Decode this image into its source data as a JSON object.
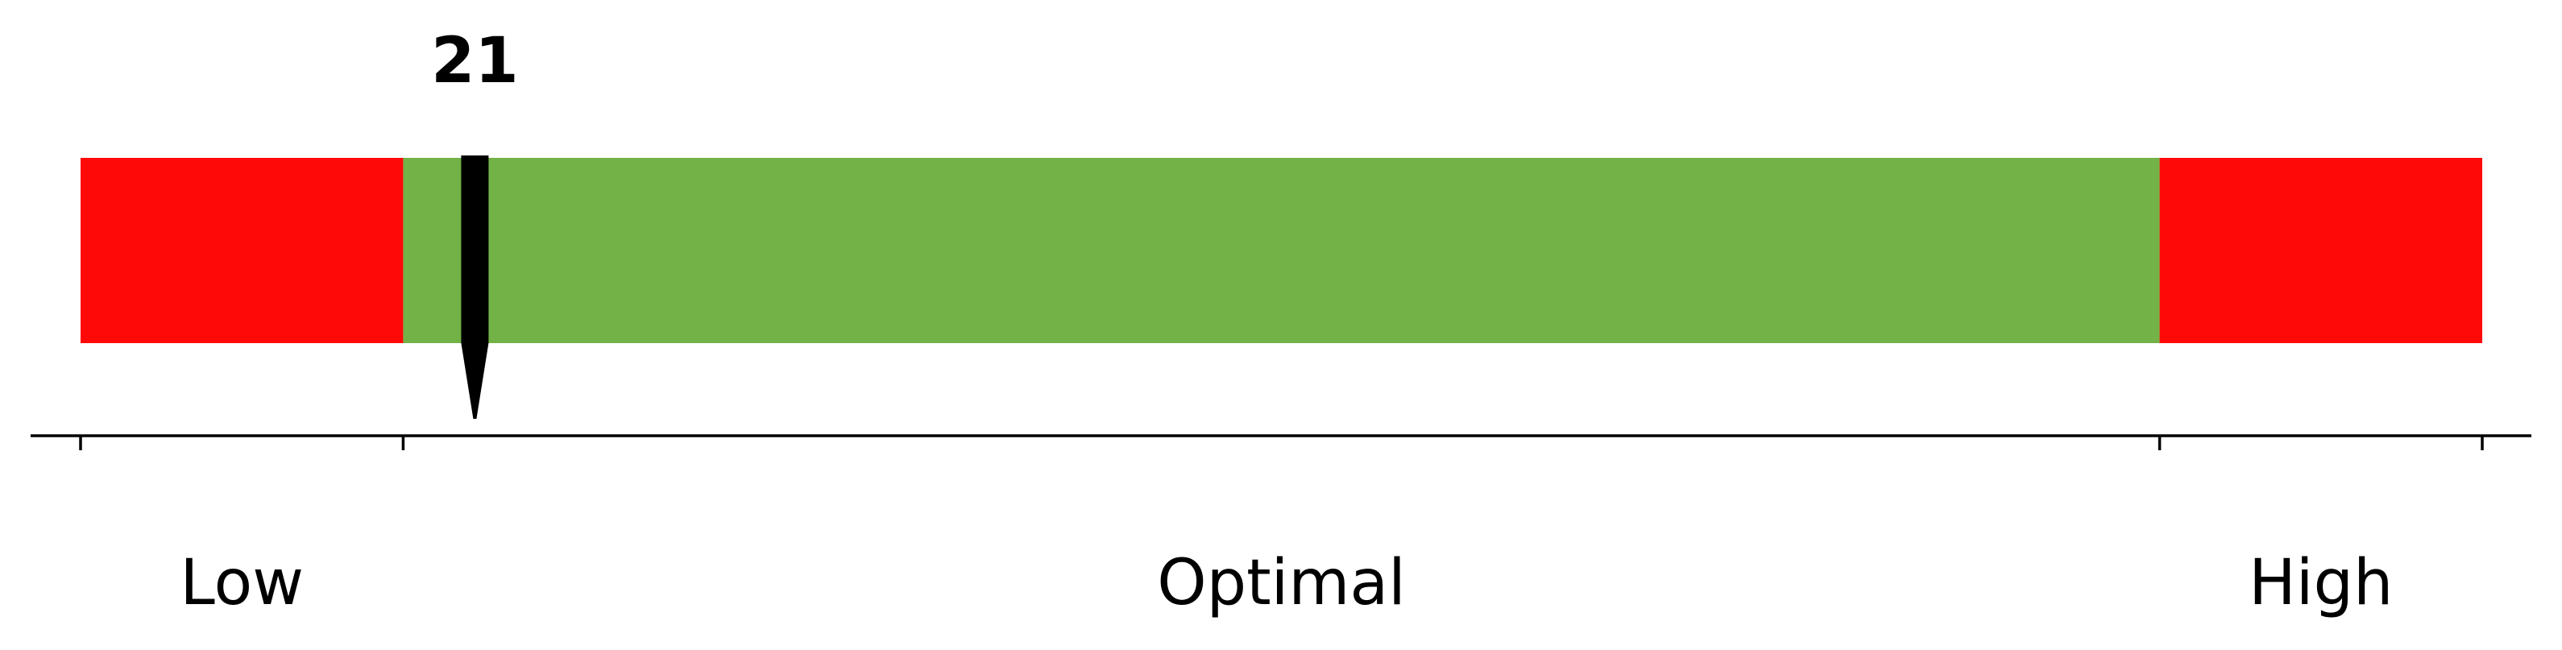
{
  "chart_data": {
    "type": "bar",
    "value": 21,
    "value_label": "21",
    "xlim": [
      10,
      77
    ],
    "zones": [
      {
        "label": "Low",
        "start": 10,
        "end": 19,
        "color": "#ff0808"
      },
      {
        "label": "Optimal",
        "start": 19,
        "end": 68,
        "color": "#72b246"
      },
      {
        "label": "High",
        "start": 68,
        "end": 77,
        "color": "#ff0808"
      }
    ],
    "ticks": [
      10,
      19,
      68,
      77
    ],
    "tick_labels": [],
    "marker_color": "#000000",
    "axis_color": "#000000",
    "grid": false
  }
}
